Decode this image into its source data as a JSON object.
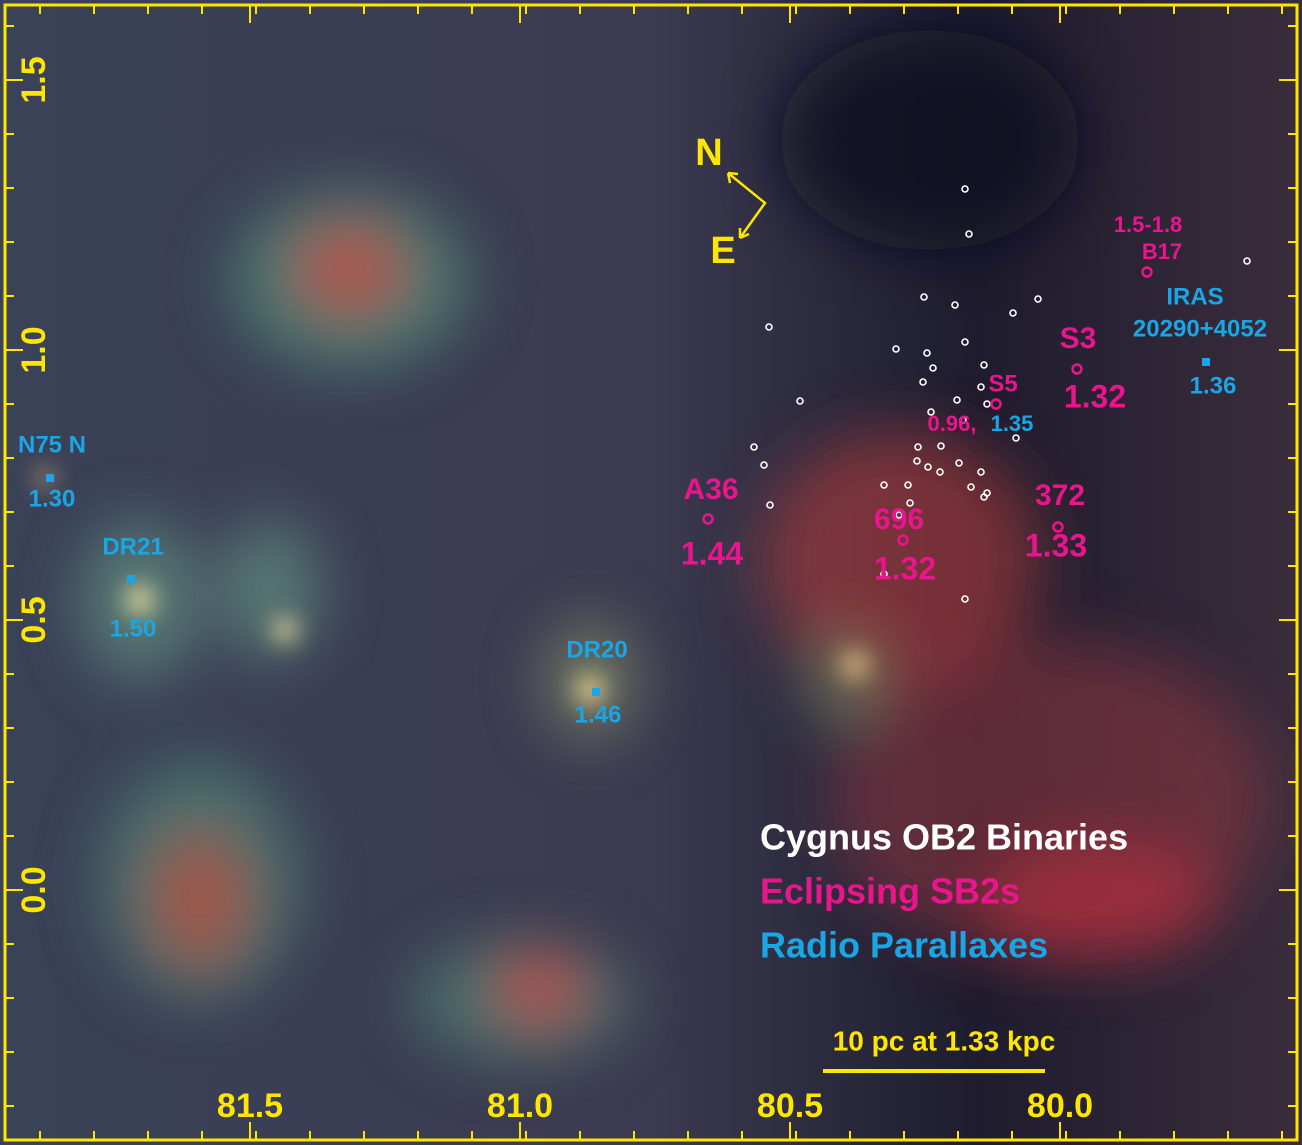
{
  "map": {
    "xticks": [
      81.5,
      {
        "value": 81.0,
        "label": "81.0"
      },
      80.5,
      {
        "value": 80.0,
        "label": "80.0"
      }
    ],
    "yticks": [
      {
        "value": 0.0,
        "label": "0.0"
      },
      0.5,
      {
        "value": 1.0,
        "label": "1.0"
      },
      1.5
    ],
    "compass": {
      "north": "N",
      "east": "E"
    },
    "annotations": [
      {
        "name": "B17",
        "distance": "1.5-1.8",
        "kind": "eclipsing"
      },
      {
        "name": "IRAS",
        "name2": "20290+4052",
        "distance": "1.36",
        "kind": "radio"
      },
      {
        "name": "S3",
        "distance": "1.32",
        "kind": "eclipsing"
      },
      {
        "name": "S5",
        "distance": "0.96,",
        "distance2": "1.35",
        "kind": "eclipsing"
      },
      {
        "name": "A36",
        "distance": "1.44",
        "kind": "eclipsing"
      },
      {
        "name": "696",
        "distance": "1.32",
        "kind": "eclipsing"
      },
      {
        "name": "372",
        "distance": "1.33",
        "kind": "eclipsing"
      },
      {
        "name": "N75 N",
        "distance": "1.30",
        "kind": "radio"
      },
      {
        "name": "DR21",
        "distance": "1.50",
        "kind": "radio"
      },
      {
        "name": "DR20",
        "distance": "1.46",
        "kind": "radio"
      }
    ],
    "legend": [
      "Cygnus OB2 Binaries",
      "Eclipsing SB2s",
      "Radio Parallaxes"
    ],
    "colors": {
      "frame": "#ffe600",
      "binaries": "#ffffff",
      "eclipsing": "#e8158c",
      "radio": "#1aa6e6"
    },
    "scale_bar": "10 pc at 1.33 kpc"
  }
}
